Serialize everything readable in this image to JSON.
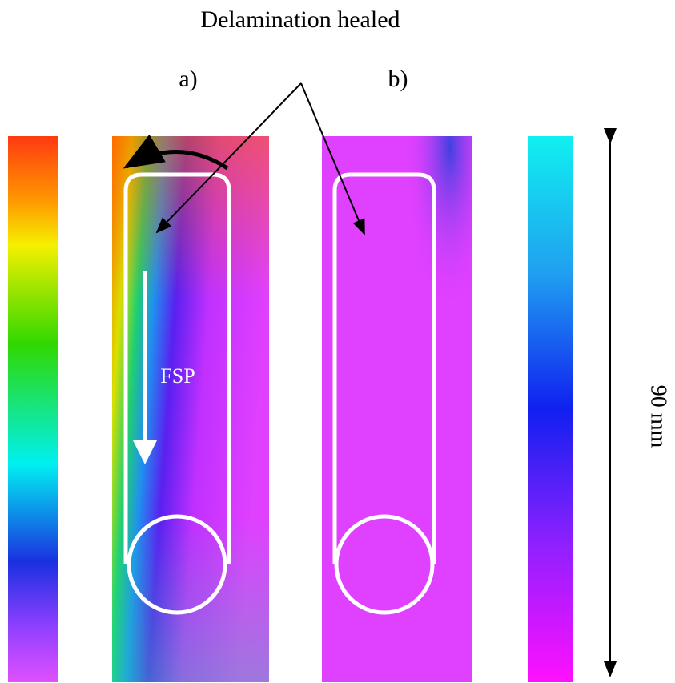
{
  "figure": {
    "title": "Delamination healed",
    "panels": [
      {
        "label": "a)",
        "annotation": "FSP"
      },
      {
        "label": "b)"
      }
    ],
    "scale_label": "90 mm"
  }
}
